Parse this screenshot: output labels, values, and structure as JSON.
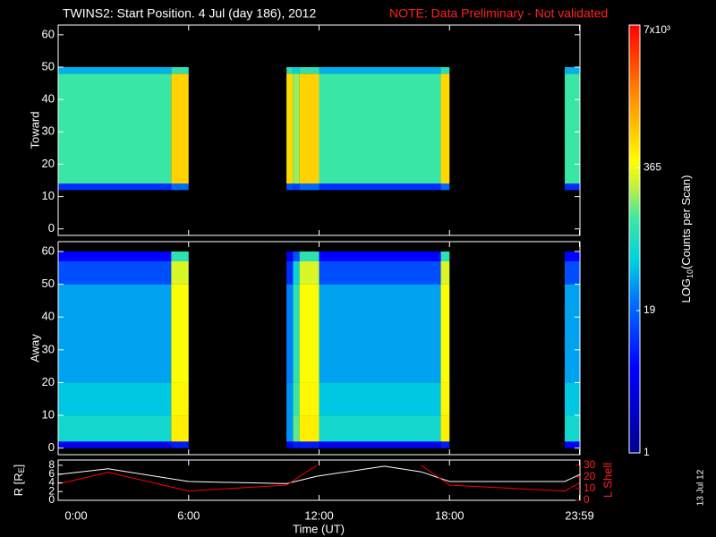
{
  "chart_data": {
    "type": "spectrogram",
    "title": "TWINS2: Start Position.  4 Jul (day 186), 2012",
    "note": "NOTE: Data Preliminary - Not validated",
    "xlim": [
      0,
      24
    ],
    "xticks": [
      {
        "value": 0,
        "label": "0:00"
      },
      {
        "value": 6,
        "label": "6:00"
      },
      {
        "value": 12,
        "label": "12:00"
      },
      {
        "value": 18,
        "label": "18:00"
      },
      {
        "value": 23.98,
        "label": "23:59"
      }
    ],
    "xlabel": "Time (UT)",
    "x_edges": [
      0,
      5.2,
      6,
      10.5,
      10.8,
      11.1,
      12,
      17.6,
      18,
      23.3,
      24
    ],
    "clim": [
      1,
      7000
    ],
    "clog": true,
    "cticks": [
      1,
      19,
      365,
      {
        "value": 7000,
        "label": "7x10³"
      }
    ],
    "colorbar_label": [
      "LOG",
      "10",
      "(Counts per Scan)"
    ],
    "colorscale": [
      [
        0,
        "#000090"
      ],
      [
        0.2,
        "#0000ff"
      ],
      [
        0.35,
        "#0070ff"
      ],
      [
        0.45,
        "#00d0e0"
      ],
      [
        0.55,
        "#40e8a0"
      ],
      [
        0.62,
        "#c0f040"
      ],
      [
        0.68,
        "#ffff00"
      ],
      [
        0.85,
        "#ff8000"
      ],
      [
        1,
        "#ff0000"
      ]
    ],
    "panels": [
      {
        "ylabel": "Toward",
        "ylim": [
          -2,
          63
        ],
        "yticks": [
          0,
          10,
          20,
          30,
          40,
          50,
          60
        ],
        "y_edges": [
          0,
          12,
          14,
          48,
          50,
          63
        ],
        "values": [
          [
            null,
            null,
            null,
            null,
            null,
            null,
            null,
            null,
            null,
            null
          ],
          [
            10,
            20,
            null,
            15,
            12,
            20,
            10,
            20,
            null,
            10
          ],
          [
            120,
            700,
            null,
            650,
            200,
            700,
            120,
            650,
            null,
            120
          ],
          [
            40,
            100,
            null,
            90,
            60,
            100,
            40,
            90,
            null,
            40
          ],
          [
            null,
            null,
            null,
            null,
            null,
            null,
            null,
            null,
            null,
            null
          ]
        ]
      },
      {
        "ylabel": "Away",
        "ylim": [
          -2,
          63
        ],
        "yticks": [
          0,
          10,
          20,
          30,
          40,
          50,
          60
        ],
        "y_edges": [
          0,
          2,
          10,
          20,
          50,
          57,
          60,
          63
        ],
        "values": [
          [
            5,
            8,
            null,
            5,
            8,
            8,
            5,
            8,
            null,
            5
          ],
          [
            70,
            500,
            null,
            30,
            150,
            500,
            70,
            500,
            null,
            70
          ],
          [
            50,
            450,
            null,
            30,
            120,
            450,
            50,
            450,
            null,
            50
          ],
          [
            35,
            400,
            null,
            25,
            100,
            400,
            35,
            400,
            null,
            35
          ],
          [
            15,
            300,
            null,
            10,
            60,
            300,
            15,
            300,
            null,
            15
          ],
          [
            6,
            100,
            null,
            5,
            15,
            100,
            6,
            100,
            null,
            6
          ],
          [
            null,
            null,
            null,
            null,
            null,
            null,
            null,
            null,
            null,
            null
          ]
        ]
      }
    ],
    "orbit": {
      "type": "line",
      "x": [
        0,
        2.3,
        6,
        10.5,
        11.9,
        15,
        16.7,
        18,
        23.3,
        24
      ],
      "ylim": [
        0,
        9.2
      ],
      "yticks": [
        0,
        2,
        4,
        6,
        8
      ],
      "y2lim": [
        0,
        34.5
      ],
      "y2ticks": [
        0,
        10,
        20,
        30
      ],
      "ylabel": [
        "R [R",
        "E",
        "]"
      ],
      "y2label": "L Shell",
      "series": [
        {
          "color": "#ffffff",
          "values": [
            5.9,
            7.2,
            4.3,
            3.8,
            5.5,
            7.8,
            6.5,
            4.3,
            4.3,
            5.9
          ]
        },
        {
          "color": "#ff0000",
          "axis": "y2",
          "values": [
            14,
            24,
            8,
            13,
            30,
            null,
            30,
            13,
            8,
            15
          ]
        }
      ]
    },
    "stamp": "13 Jul 12"
  }
}
